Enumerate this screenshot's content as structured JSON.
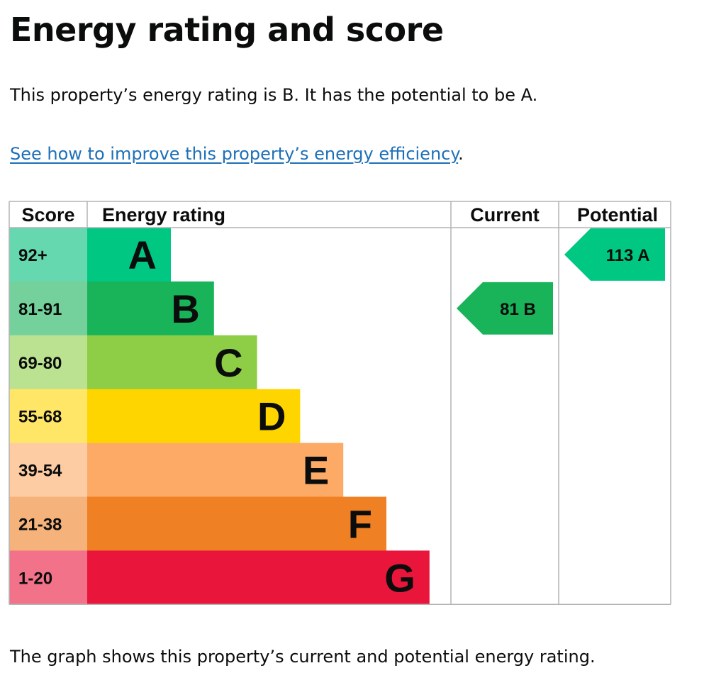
{
  "page": {
    "title": "Energy rating and score",
    "intro": "This property’s energy rating is B. It has the potential to be A.",
    "link_text": "See how to improve this property’s energy efficiency",
    "link_suffix": ".",
    "footer": "The graph shows this property’s current and potential energy rating."
  },
  "chart_data": {
    "type": "bar",
    "headers": {
      "score": "Score",
      "rating": "Energy rating",
      "current": "Current",
      "potential": "Potential"
    },
    "bands": [
      {
        "letter": "A",
        "range": "92+",
        "color": "#00c781",
        "score_bg": "#66d8b0"
      },
      {
        "letter": "B",
        "range": "81-91",
        "color": "#19b459",
        "score_bg": "#75d19b"
      },
      {
        "letter": "C",
        "range": "69-80",
        "color": "#8dce46",
        "score_bg": "#bbe290"
      },
      {
        "letter": "D",
        "range": "55-68",
        "color": "#ffd500",
        "score_bg": "#ffe666"
      },
      {
        "letter": "E",
        "range": "39-54",
        "color": "#fcaa65",
        "score_bg": "#fdcca3"
      },
      {
        "letter": "F",
        "range": "21-38",
        "color": "#ef8023",
        "score_bg": "#f5b37b"
      },
      {
        "letter": "G",
        "range": "1-20",
        "color": "#e9153b",
        "score_bg": "#f27389"
      }
    ],
    "current": {
      "score": 81,
      "band": "B"
    },
    "potential": {
      "score": 113,
      "band": "A"
    },
    "border_color": "#b1b4b6"
  }
}
